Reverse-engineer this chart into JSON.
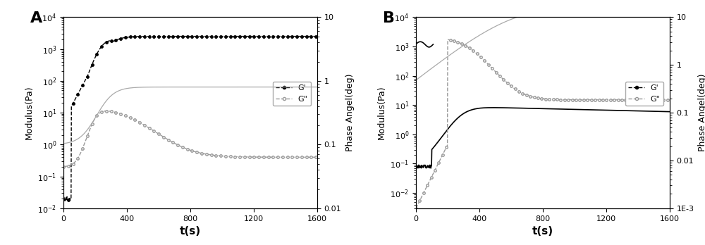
{
  "panel_A": {
    "label": "A",
    "xlim": [
      0,
      1600
    ],
    "xticks": [
      0,
      400,
      800,
      1200,
      1600
    ],
    "left_ylim": [
      0.01,
      10000
    ],
    "right_ylim": [
      0.01,
      10
    ],
    "right_yticks_labels": [
      "0.01",
      "0.1",
      "1",
      "10"
    ],
    "right_yticks_values": [
      0.01,
      0.1,
      1.0,
      10.0
    ],
    "xlabel": "t(s)",
    "left_ylabel": "Modulus(Pa)",
    "right_ylabel": "Phase Angel(deg)",
    "legend_labels": [
      "G'",
      "G\""
    ]
  },
  "panel_B": {
    "label": "B",
    "xlim": [
      0,
      1600
    ],
    "xticks": [
      0,
      400,
      800,
      1200,
      1600
    ],
    "left_ylim": [
      0.003,
      10000
    ],
    "right_ylim": [
      0.001,
      10
    ],
    "right_yticks_labels": [
      "1E-3",
      "0.01",
      "0.1",
      "1",
      "10"
    ],
    "right_yticks_values": [
      0.001,
      0.01,
      0.1,
      1.0,
      10.0
    ],
    "xlabel": "t(s)",
    "left_ylabel": "Modulus(Pa)",
    "right_ylabel": "Phase Angel(deg)",
    "legend_labels": [
      "G'",
      "G\""
    ]
  },
  "background_color": "#ffffff",
  "fig_width": 10.0,
  "fig_height": 3.48
}
